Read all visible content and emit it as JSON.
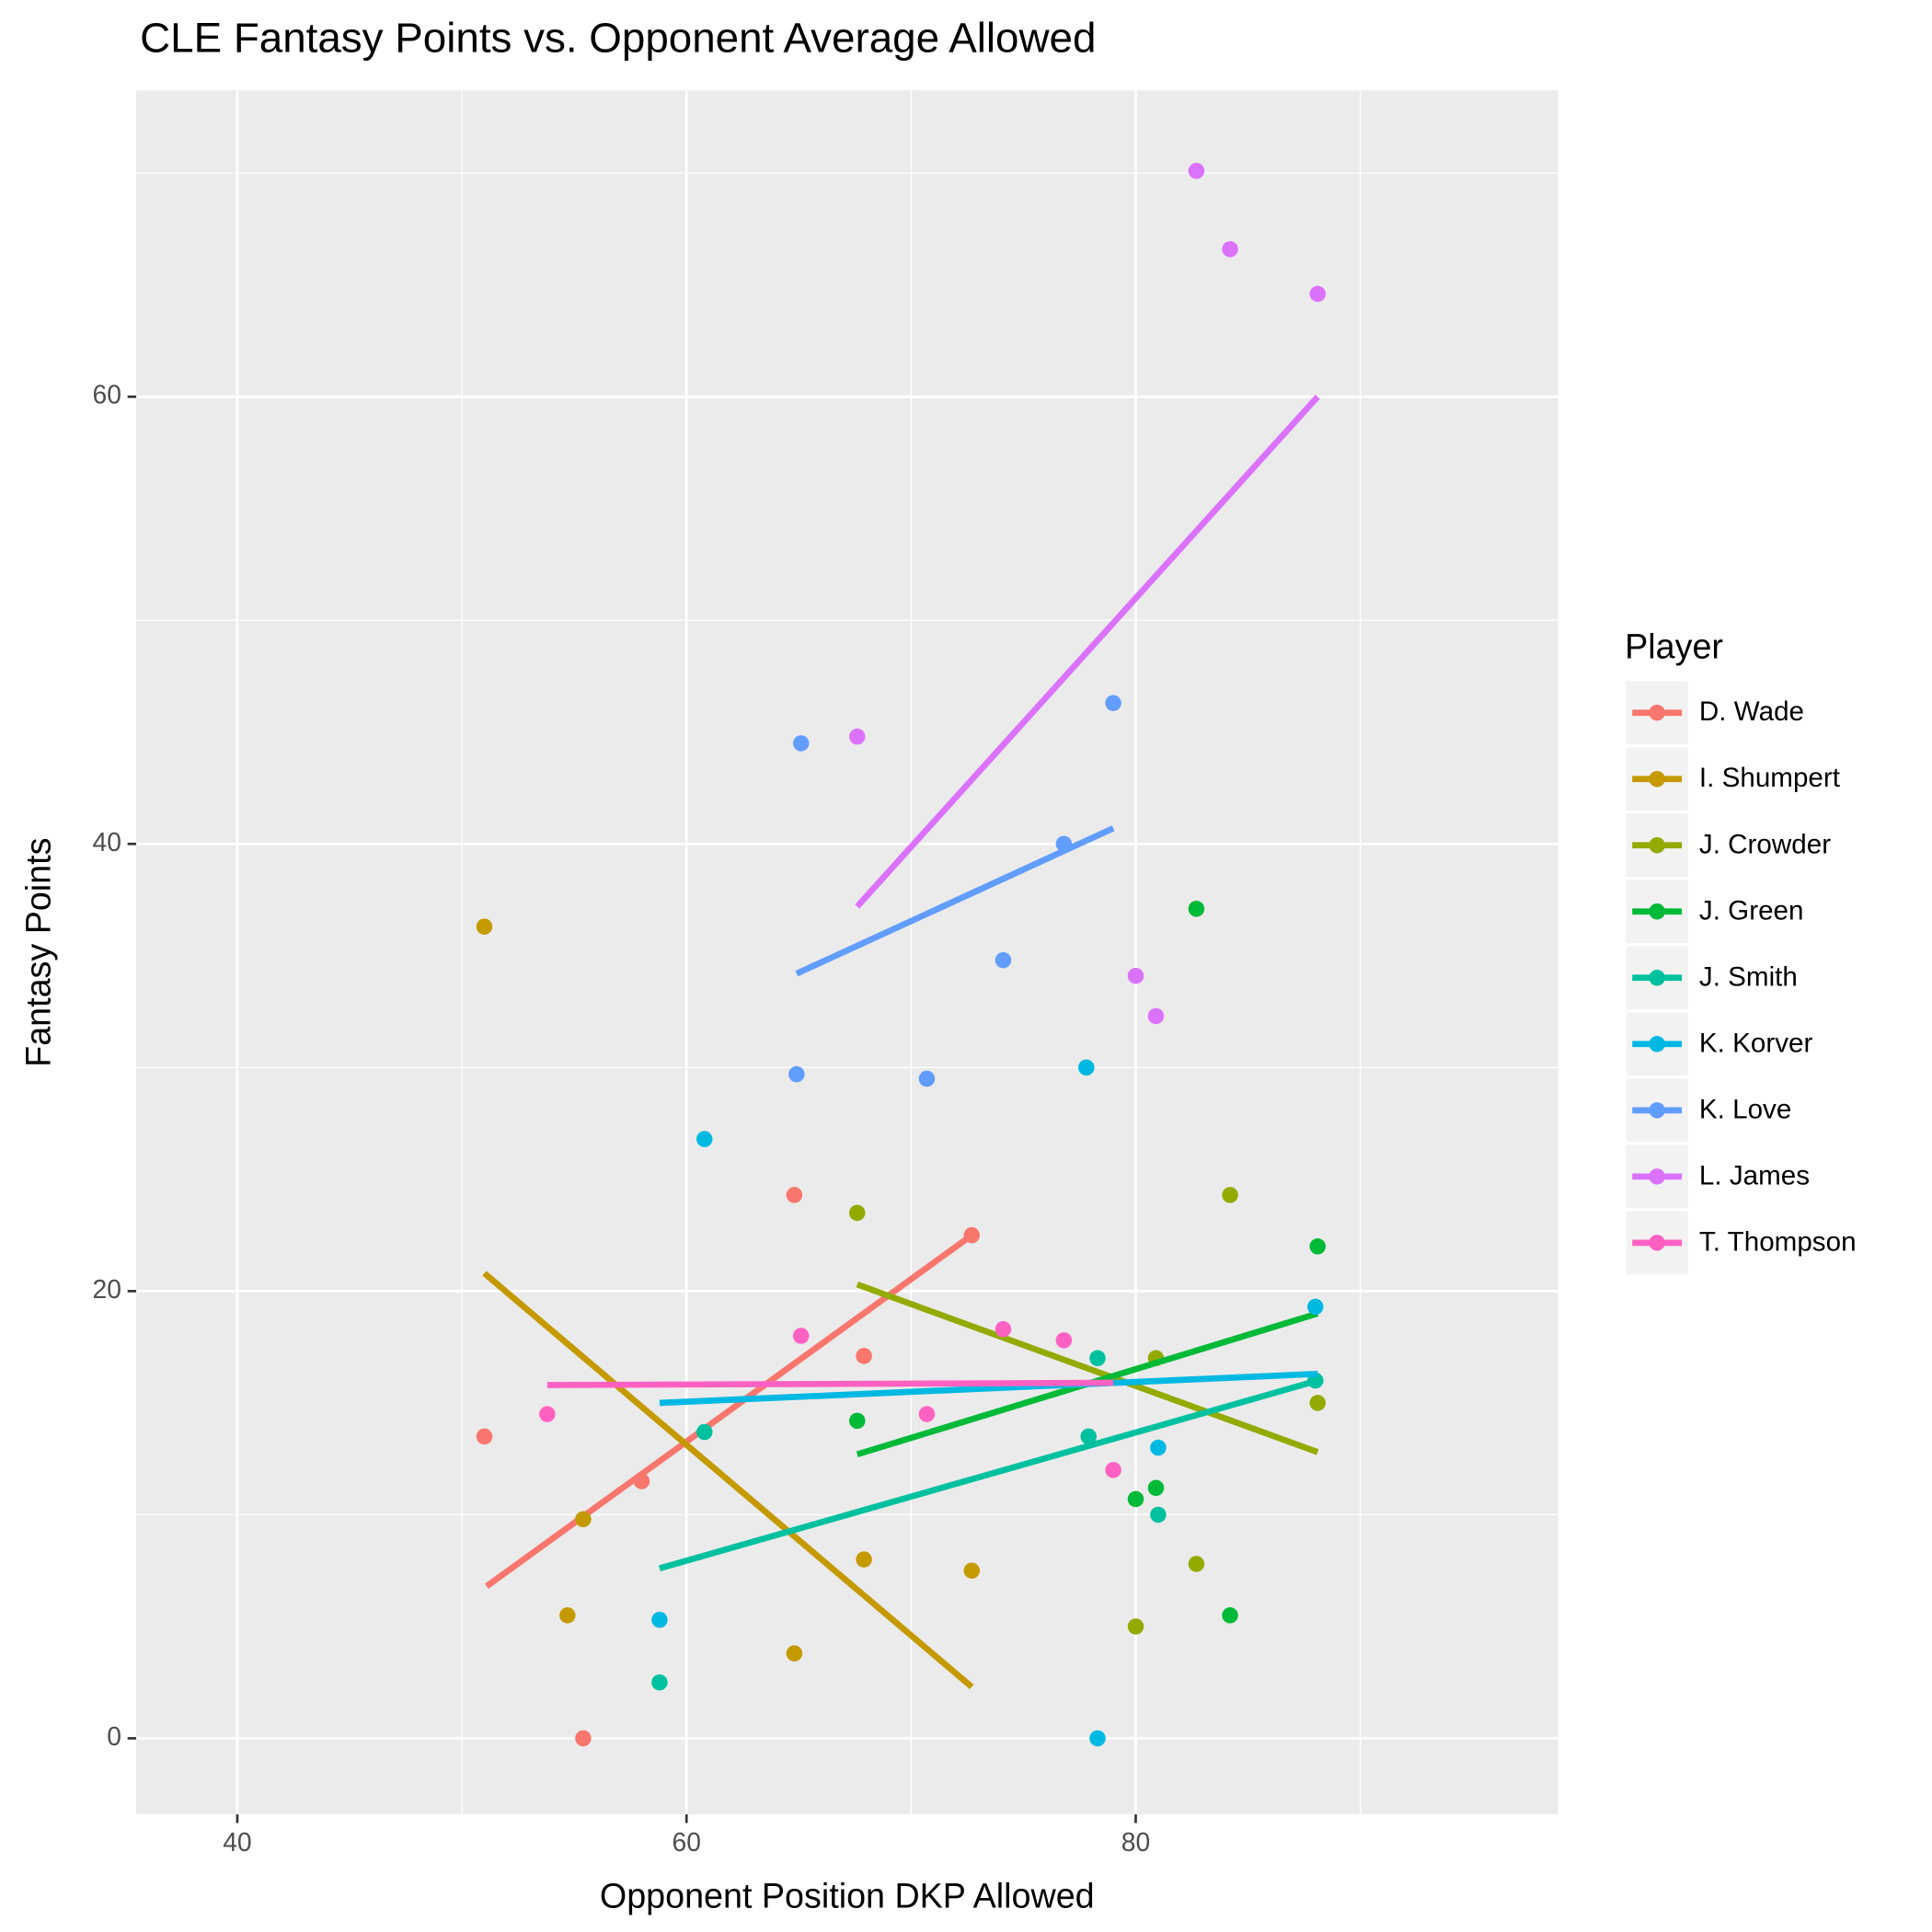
{
  "chart_data": {
    "type": "scatter",
    "title": "CLE Fantasy Points vs. Opponent Average Allowed",
    "x_label": "Opponent Position DKP Allowed",
    "y_label": "Fantasy Points",
    "legend_title": "Player",
    "legend_position": "right",
    "grid": true,
    "xlim": [
      35.5,
      98.8
    ],
    "ylim": [
      -3.4,
      73.7
    ],
    "xticks": [
      40,
      60,
      80
    ],
    "yticks": [
      0,
      20,
      40,
      60
    ],
    "series": [
      {
        "name": "D. Wade",
        "color": "#F8766D",
        "x": [
          51.0,
          55.4,
          58.0,
          64.8,
          67.9,
          72.7
        ],
        "values": [
          13.5,
          0,
          11.5,
          24.3,
          17.1,
          22.5
        ],
        "fit_x": [
          51.1,
          72.7
        ],
        "fit_y": [
          6.8,
          22.5
        ]
      },
      {
        "name": "I. Shumpert",
        "color": "#C49A00",
        "x": [
          51.0,
          55.4,
          54.7,
          64.8,
          67.9,
          72.7
        ],
        "values": [
          36.3,
          9.8,
          5.5,
          3.8,
          8.0,
          7.5
        ],
        "fit_x": [
          51.0,
          72.7
        ],
        "fit_y": [
          20.8,
          2.3
        ]
      },
      {
        "name": "J. Crowder",
        "color": "#93AA00",
        "x": [
          67.6,
          84.2,
          88.1,
          82.7,
          80.0,
          80.9
        ],
        "values": [
          23.5,
          24.3,
          15.0,
          7.8,
          5.0,
          17.0
        ],
        "fit_x": [
          67.6,
          88.1
        ],
        "fit_y": [
          20.3,
          12.8
        ]
      },
      {
        "name": "J. Green",
        "color": "#00BA38",
        "x": [
          82.7,
          88.1,
          67.6,
          80.9,
          80.0,
          84.2
        ],
        "values": [
          37.1,
          22.0,
          14.2,
          11.2,
          10.7,
          5.5
        ],
        "fit_x": [
          67.6,
          88.1
        ],
        "fit_y": [
          12.7,
          19.0
        ]
      },
      {
        "name": "J. Smith",
        "color": "#00C19F",
        "x": [
          60.8,
          58.8,
          77.9,
          78.3,
          81.0,
          88.0
        ],
        "values": [
          13.7,
          2.5,
          13.5,
          17.0,
          10.0,
          16.0
        ],
        "fit_x": [
          58.8,
          88.1
        ],
        "fit_y": [
          7.6,
          16.0
        ]
      },
      {
        "name": "K. Korver",
        "color": "#00B9E3",
        "x": [
          60.8,
          58.8,
          77.8,
          78.3,
          81.0,
          88.0
        ],
        "values": [
          26.8,
          5.3,
          30.0,
          0,
          13.0,
          19.3
        ],
        "fit_x": [
          58.8,
          88.1
        ],
        "fit_y": [
          15.0,
          16.3
        ]
      },
      {
        "name": "K. Love",
        "color": "#619CFF",
        "x": [
          65.1,
          64.9,
          70.7,
          74.1,
          76.8,
          79.0
        ],
        "values": [
          44.5,
          29.7,
          29.5,
          34.8,
          40.0,
          46.3
        ],
        "fit_x": [
          64.9,
          79.0
        ],
        "fit_y": [
          34.2,
          40.7
        ]
      },
      {
        "name": "L. James",
        "color": "#DB72FB",
        "x": [
          67.6,
          80.0,
          80.9,
          82.7,
          84.2,
          88.1
        ],
        "values": [
          44.8,
          34.1,
          32.3,
          70.1,
          66.6,
          64.6
        ],
        "fit_x": [
          67.6,
          88.1
        ],
        "fit_y": [
          37.2,
          60.0
        ]
      },
      {
        "name": "T. Thompson",
        "color": "#FF61C3",
        "x": [
          53.8,
          65.1,
          70.7,
          74.1,
          76.8,
          79.0
        ],
        "values": [
          14.5,
          18.0,
          14.5,
          18.3,
          17.8,
          12.0
        ],
        "fit_x": [
          53.8,
          79.0
        ],
        "fit_y": [
          15.8,
          15.9
        ]
      }
    ]
  }
}
